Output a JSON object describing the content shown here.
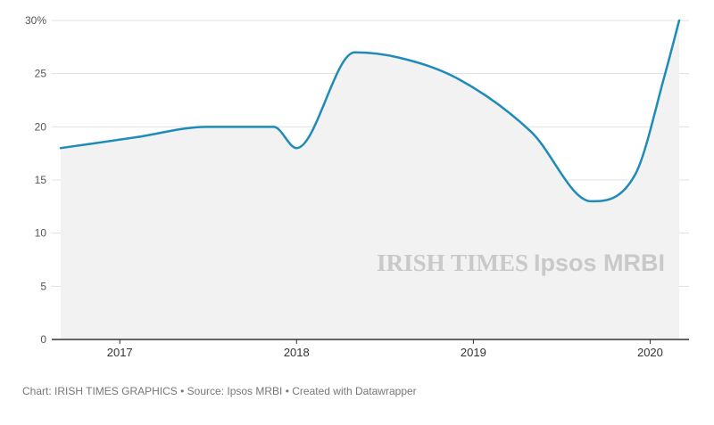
{
  "chart_data": {
    "type": "area",
    "ylim": [
      0,
      30
    ],
    "y_ticks": [
      0,
      5,
      10,
      15,
      20,
      25,
      30
    ],
    "y_tick_labels": [
      "0",
      "5",
      "10",
      "15",
      "20",
      "25",
      "30%"
    ],
    "x_tick_labels": [
      "2017",
      "2018",
      "2019",
      "2020"
    ],
    "x_tick_dates": [
      "2017-01-01",
      "2018-01-01",
      "2019-01-01",
      "2020-01-01"
    ],
    "x_range": [
      "2016-09-01",
      "2020-03-01"
    ],
    "grid": true,
    "series": [
      {
        "x": [
          "2016-09-01",
          "2017-02-01",
          "2017-07-01",
          "2017-11-15",
          "2018-01-01",
          "2018-05-01",
          "2018-08-01",
          "2018-12-01",
          "2019-05-01",
          "2019-09-01",
          "2019-12-01",
          "2020-02-01",
          "2020-03-01"
        ],
        "values": [
          18,
          19,
          20,
          20,
          18,
          27,
          26.5,
          24.5,
          19.5,
          13,
          15.5,
          25,
          30
        ]
      }
    ],
    "colors": {
      "line": "#1f8bb8",
      "area": "#f2f2f2",
      "grid": "#e0e0e0",
      "baseline": "#333333"
    }
  },
  "watermark": {
    "part1": "IRISH TIMES",
    "part2": "Ipsos MRBI"
  },
  "footer": {
    "credit": "Chart: IRISH TIMES GRAPHICS • Source: Ipsos MRBI • Created with Datawrapper"
  }
}
